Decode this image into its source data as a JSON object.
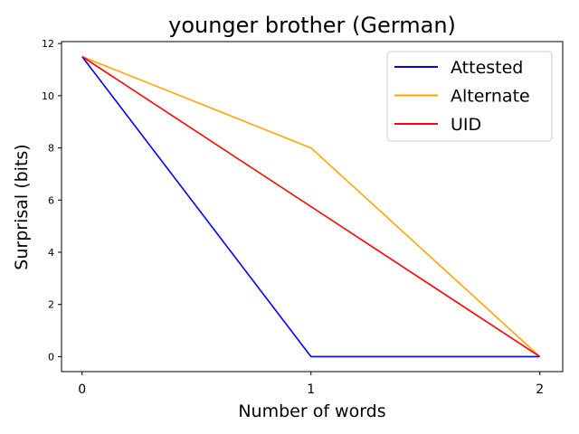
{
  "chart_data": {
    "type": "line",
    "title": "younger brother (German)",
    "xlabel": "Number of words",
    "ylabel": "Surprisal (bits)",
    "x": [
      0,
      1,
      2
    ],
    "xticks": [
      "0",
      "1",
      "2"
    ],
    "yticks": [
      "0",
      "2",
      "4",
      "6",
      "8",
      "10",
      "12"
    ],
    "xlim": [
      -0.09,
      2.1
    ],
    "ylim": [
      -0.575,
      12.075
    ],
    "grid": false,
    "legend_position": "top-right",
    "series": [
      {
        "name": "Attested",
        "color": "#0000ff",
        "values": [
          11.5,
          0,
          0
        ]
      },
      {
        "name": "Alternate",
        "color": "#ffa500",
        "values": [
          11.5,
          8.0,
          0
        ]
      },
      {
        "name": "UID",
        "color": "#ff0000",
        "values": [
          11.5,
          5.75,
          0
        ]
      }
    ]
  }
}
